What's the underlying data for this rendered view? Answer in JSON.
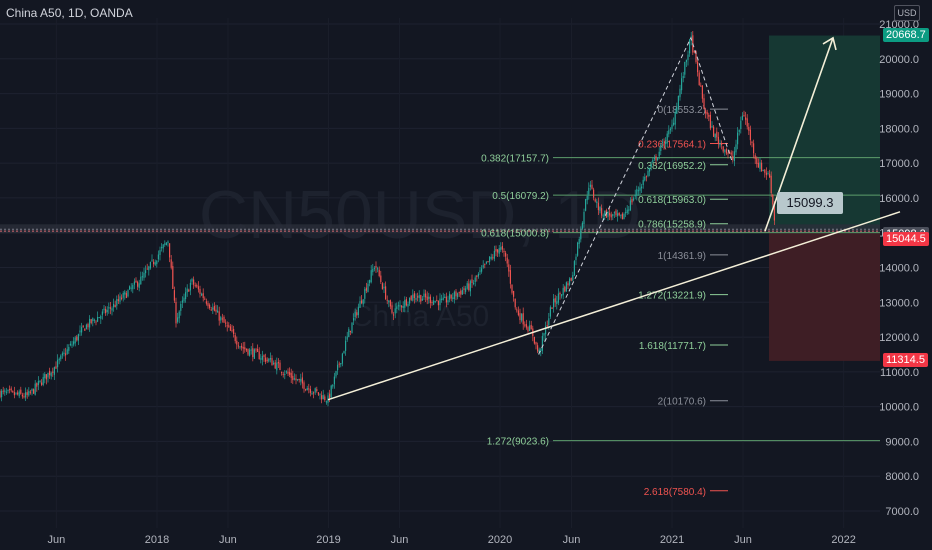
{
  "header": {
    "title": "China A50, 1D, OANDA",
    "currency": "USD"
  },
  "watermark": {
    "symbol": "CN50USD, 1D",
    "name": "China A50"
  },
  "colors": {
    "background": "#131722",
    "up": "#26a69a",
    "down": "#ef5350",
    "fib_green": "#5d9e6b",
    "fib_red": "#ef5350",
    "trendline": "#f4efd8",
    "target_box": "#163833",
    "stop_box": "#3e1e25"
  },
  "price_tags": {
    "target": "20668.7",
    "current": "15098.2",
    "entry": "15044.5",
    "stop": "11314.5"
  },
  "callout": {
    "label": "15099.3"
  },
  "chart_data": {
    "type": "candlestick",
    "title": "China A50, 1D, OANDA",
    "y_axis": {
      "ticks": [
        7000,
        8000,
        9000,
        10000,
        11000,
        12000,
        13000,
        14000,
        15000,
        16000,
        17000,
        18000,
        19000,
        20000,
        21000
      ],
      "labels": [
        "7000.0",
        "8000.0",
        "9000.0",
        "10000.0",
        "11000.0",
        "12000.0",
        "13000.0",
        "14000.0",
        "15000.0",
        "16000.0",
        "17000.0",
        "18000.0",
        "19000.0",
        "20000.0",
        "21000.0"
      ],
      "ylim": [
        6550,
        21500
      ]
    },
    "x_axis": {
      "labels": [
        "Jun",
        "2018",
        "Jun",
        "2019",
        "Jun",
        "2020",
        "Jun",
        "2021",
        "Jun",
        "2022"
      ],
      "range": [
        "2017-02",
        "2022-05"
      ]
    },
    "price_series": {
      "dates": [
        "2017-02-01",
        "2017-04-01",
        "2017-06-01",
        "2017-08-01",
        "2017-10-01",
        "2017-12-01",
        "2018-01-25",
        "2018-02-10",
        "2018-03-15",
        "2018-05-01",
        "2018-07-01",
        "2018-09-01",
        "2018-10-20",
        "2018-12-31",
        "2019-02-15",
        "2019-04-10",
        "2019-05-15",
        "2019-07-01",
        "2019-09-01",
        "2019-11-01",
        "2019-12-31",
        "2020-01-15",
        "2020-02-03",
        "2020-03-10",
        "2020-03-23",
        "2020-04-20",
        "2020-06-01",
        "2020-07-08",
        "2020-08-01",
        "2020-09-15",
        "2020-11-01",
        "2020-12-31",
        "2021-02-10",
        "2021-03-10",
        "2021-04-01",
        "2021-05-10",
        "2021-06-01",
        "2021-07-01",
        "2021-07-28",
        "2021-08-10"
      ],
      "close": [
        10400,
        10300,
        11200,
        12300,
        12900,
        13700,
        14800,
        12500,
        13600,
        12800,
        11700,
        11300,
        10800,
        10200,
        12200,
        14100,
        12700,
        13200,
        13000,
        13500,
        14600,
        14200,
        12800,
        12100,
        11500,
        12900,
        13700,
        16400,
        15600,
        15400,
        16500,
        18000,
        20600,
        18600,
        17800,
        17100,
        18500,
        17000,
        16600,
        15000
      ]
    },
    "fib_retracement_1": {
      "levels": [
        {
          "label": "0.382(17157.7)",
          "value": 17157.7
        },
        {
          "label": "0.5(16079.2)",
          "value": 16079.2
        },
        {
          "label": "0.618(15000.8)",
          "value": 15000.8
        },
        {
          "label": "1.272(9023.6)",
          "value": 9023.6
        }
      ]
    },
    "fib_retracement_2": {
      "levels": [
        {
          "label": "0(18553.2)",
          "value": 18553.2
        },
        {
          "label": "0.236(17564.1)",
          "value": 17564.1
        },
        {
          "label": "0.382(16952.2)",
          "value": 16952.2
        },
        {
          "label": "0.618(15963.0)",
          "value": 15963.0
        },
        {
          "label": "0.786(15258.9)",
          "value": 15258.9
        },
        {
          "label": "1(14361.9)",
          "value": 14361.9
        },
        {
          "label": "1.272(13221.9)",
          "value": 13221.9
        },
        {
          "label": "1.618(11771.7)",
          "value": 11771.7
        },
        {
          "label": "2(10170.6)",
          "value": 10170.6
        },
        {
          "label": "2.618(7580.4)",
          "value": 7580.4
        }
      ]
    },
    "position": {
      "entry": 15044.5,
      "target": 20668.7,
      "stop": 11314.5,
      "current": 15098.2
    },
    "trendline": {
      "from": {
        "date": "2018-12-31",
        "value": 10200
      },
      "to": {
        "date": "2022-05-01",
        "value": 15600
      }
    }
  }
}
